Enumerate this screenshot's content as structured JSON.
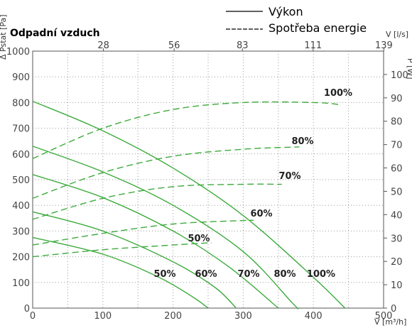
{
  "chart_data": {
    "type": "line",
    "title": "Odpadní vzduch",
    "legend": {
      "solid_label": "Výkon",
      "dashed_label": "Spotřeba energie",
      "placement": "top-right"
    },
    "xlabel": "V [m³/h]",
    "x2label": "V [l/s]",
    "ylabel": "Δ Pstat [Pa]",
    "y2label": "P [W]",
    "xlim": [
      0,
      500
    ],
    "ylim": [
      0,
      1000
    ],
    "y2lim": [
      0,
      110
    ],
    "x_ticks": [
      "0",
      "100",
      "200",
      "300",
      "400",
      "500"
    ],
    "x2_ticks": [
      "28",
      "56",
      "83",
      "111",
      "139"
    ],
    "y_ticks": [
      "0",
      "100",
      "200",
      "300",
      "400",
      "500",
      "600",
      "700",
      "800",
      "900",
      "1000"
    ],
    "y2_ticks": [
      "0",
      "10",
      "20",
      "30",
      "40",
      "50",
      "60",
      "70",
      "80",
      "90",
      "100"
    ],
    "grid": true,
    "line_color": "#3dab3d",
    "pressure_series": [
      {
        "name": "100%",
        "points": [
          [
            0,
            805
          ],
          [
            100,
            690
          ],
          [
            200,
            545
          ],
          [
            300,
            360
          ],
          [
            400,
            120
          ],
          [
            445,
            0
          ]
        ]
      },
      {
        "name": "80%",
        "points": [
          [
            0,
            630
          ],
          [
            100,
            530
          ],
          [
            200,
            400
          ],
          [
            300,
            220
          ],
          [
            370,
            20
          ],
          [
            378,
            0
          ]
        ]
      },
      {
        "name": "70%",
        "points": [
          [
            0,
            520
          ],
          [
            100,
            430
          ],
          [
            200,
            300
          ],
          [
            280,
            160
          ],
          [
            350,
            0
          ]
        ]
      },
      {
        "name": "60%",
        "points": [
          [
            0,
            375
          ],
          [
            100,
            300
          ],
          [
            200,
            180
          ],
          [
            260,
            80
          ],
          [
            290,
            0
          ]
        ]
      },
      {
        "name": "50%",
        "points": [
          [
            0,
            275
          ],
          [
            100,
            210
          ],
          [
            180,
            120
          ],
          [
            230,
            40
          ],
          [
            250,
            0
          ]
        ]
      }
    ],
    "power_series": [
      {
        "name": "100%",
        "points": [
          [
            0,
            64
          ],
          [
            100,
            77
          ],
          [
            200,
            85
          ],
          [
            300,
            88
          ],
          [
            400,
            88
          ],
          [
            440,
            87
          ]
        ]
      },
      {
        "name": "80%",
        "points": [
          [
            0,
            47
          ],
          [
            100,
            58
          ],
          [
            200,
            65
          ],
          [
            300,
            68
          ],
          [
            380,
            69
          ]
        ]
      },
      {
        "name": "70%",
        "points": [
          [
            0,
            38
          ],
          [
            100,
            47
          ],
          [
            200,
            52
          ],
          [
            300,
            53
          ],
          [
            355,
            53
          ]
        ]
      },
      {
        "name": "60%",
        "points": [
          [
            0,
            27
          ],
          [
            100,
            32
          ],
          [
            200,
            36
          ],
          [
            300,
            37.5
          ],
          [
            315,
            37.5
          ]
        ]
      },
      {
        "name": "50%",
        "points": [
          [
            0,
            22
          ],
          [
            100,
            25
          ],
          [
            200,
            27
          ],
          [
            255,
            28
          ]
        ]
      }
    ],
    "series_labels": {
      "pressure": [
        "50%",
        "60%",
        "70%",
        "80%",
        "100%"
      ],
      "power": [
        "100%",
        "80%",
        "70%",
        "60%",
        "50%"
      ]
    }
  }
}
